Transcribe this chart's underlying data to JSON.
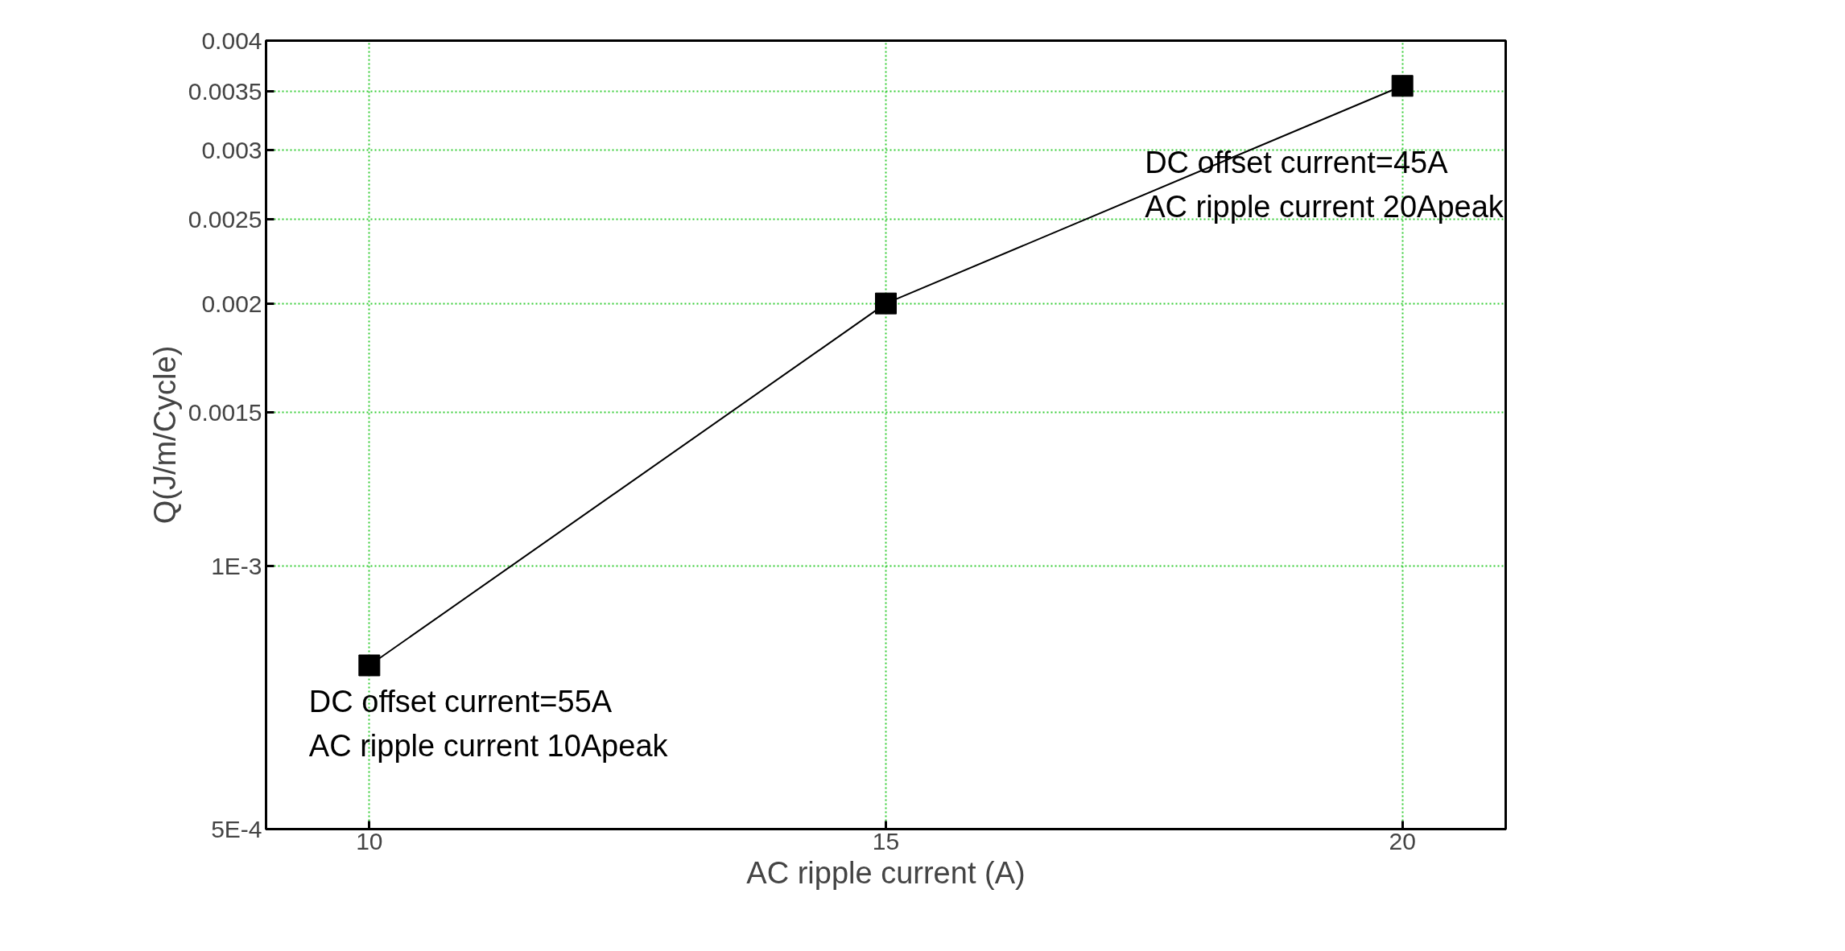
{
  "chart_data": {
    "type": "line",
    "xlabel": "AC ripple current (A)",
    "ylabel": "Q(J/m/Cycle)",
    "x": [
      10,
      15,
      20
    ],
    "series": [
      {
        "color": "#000000",
        "values": [
          0.00077,
          0.002,
          0.00355
        ]
      }
    ],
    "marker": "square",
    "line_style": "solid",
    "log": "y",
    "grid": true,
    "xlim": [
      9,
      21
    ],
    "xticks": [
      10,
      15,
      20
    ],
    "ylim": [
      0.0005,
      0.004
    ],
    "yticks": [
      {
        "value": 0.0005,
        "label": "5E-4"
      },
      {
        "value": 0.001,
        "label": "1E-3"
      },
      0.0015,
      0.002,
      0.0025,
      0.003,
      0.0035,
      0.004
    ],
    "annotations": [
      {
        "text": "DC offset current=55A\nAC ripple current 10Apeak",
        "x": 10,
        "y": 0.00077
      },
      {
        "text": "DC offset current=45A\nAC  ripple current 20Apeak",
        "x": 20,
        "y": 0.00355
      }
    ]
  }
}
